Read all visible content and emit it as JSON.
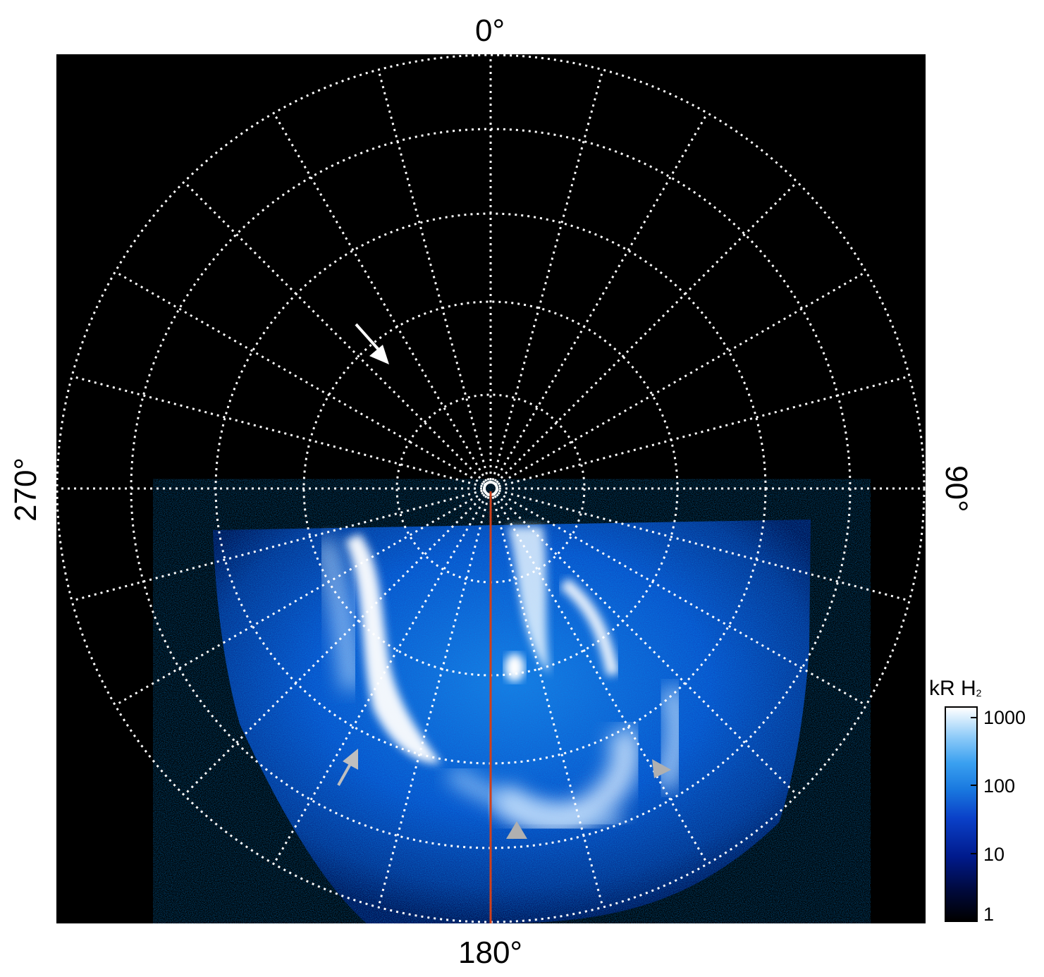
{
  "axes": {
    "top_label": "0°",
    "right_label": "90°",
    "bottom_label": "180°",
    "left_label": "270°"
  },
  "colorbar": {
    "title": "kR H",
    "title_sub": "2",
    "scale": "log",
    "ticks": [
      "1000",
      "100",
      "10",
      "1"
    ]
  },
  "image": {
    "description_colors": {
      "background": "#000000",
      "grid": "#ffffff",
      "meridian_line": "#d0401a",
      "emission_low": "#001a8c",
      "emission_mid": "#1a7ae0",
      "emission_high": "#ffffff",
      "arrow_white": "#ffffff",
      "arrow_grey": "#b0b0b0"
    },
    "grid": {
      "meridian_spacing_deg": 15,
      "rings": 6
    }
  }
}
